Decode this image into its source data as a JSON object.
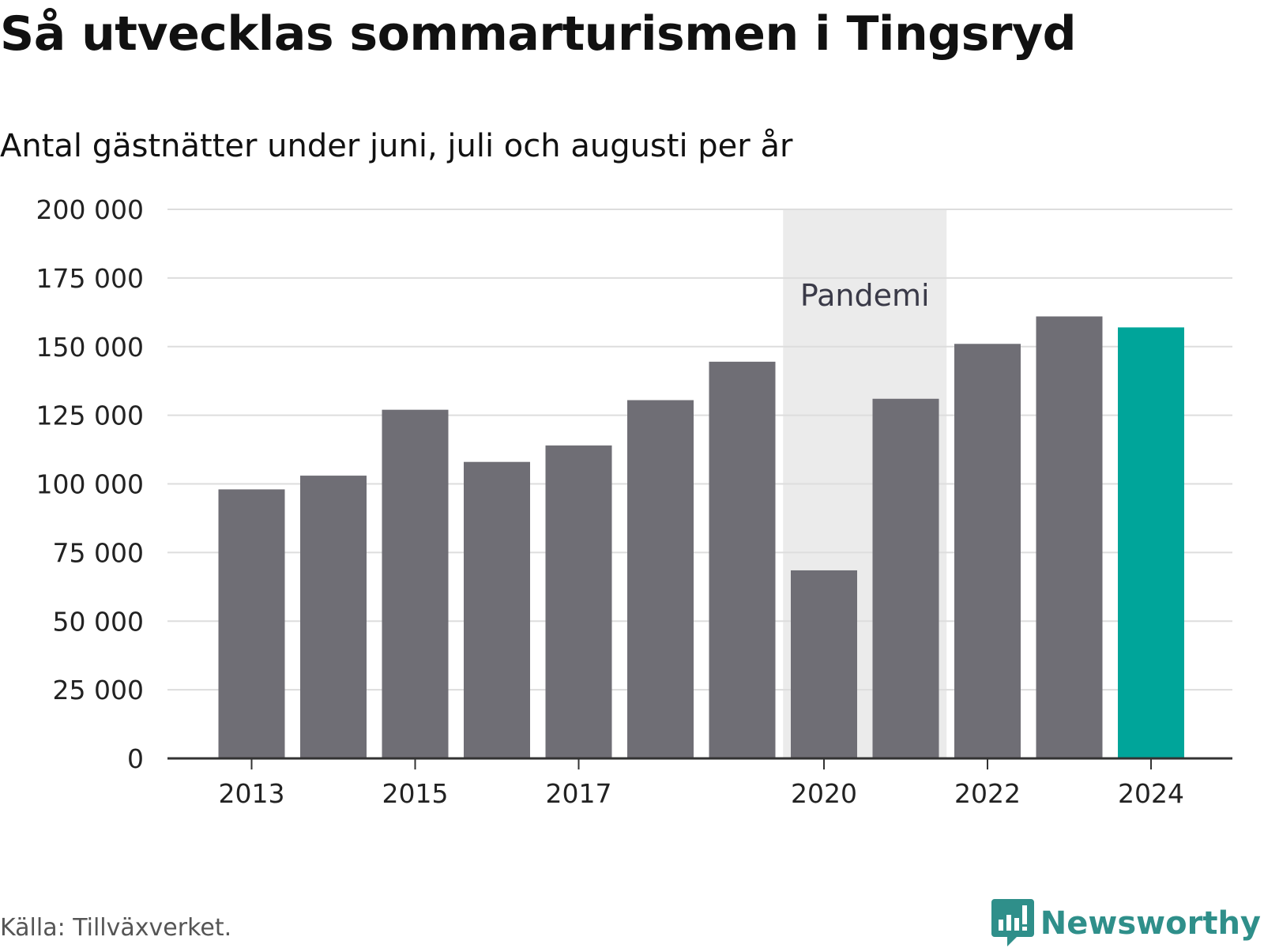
{
  "title": "Så utvecklas sommarturismen i Tingsryd",
  "subtitle": "Antal gästnätter under juni, juli och augusti per år",
  "source": "Källa: Tillväxverket.",
  "brand": "Newsworthy",
  "colors": {
    "bar": "#6f6e75",
    "highlight": "#00a59a",
    "band": "#ebebeb",
    "grid": "#dddddd",
    "axis": "#333333",
    "brand": "#2f8f8a"
  },
  "chart_data": {
    "type": "bar",
    "categories": [
      "2013",
      "2014",
      "2015",
      "2016",
      "2017",
      "2018",
      "2019",
      "2020",
      "2021",
      "2022",
      "2023",
      "2024"
    ],
    "values": [
      98000,
      103000,
      127000,
      108000,
      114000,
      130500,
      144500,
      68500,
      131000,
      151000,
      161000,
      157000
    ],
    "highlight_index": 11,
    "ylim": [
      0,
      200000
    ],
    "yticks": [
      0,
      25000,
      50000,
      75000,
      100000,
      125000,
      150000,
      175000,
      200000
    ],
    "ytick_labels": [
      "0",
      "25 000",
      "50 000",
      "75 000",
      "100 000",
      "125 000",
      "150 000",
      "175 000",
      "200 000"
    ],
    "xtick_labels": [
      "2013",
      "2015",
      "2017",
      "2020",
      "2022",
      "2024"
    ],
    "band": {
      "from": "2020",
      "to": "2021",
      "label": "Pandemi"
    },
    "grid": true
  }
}
